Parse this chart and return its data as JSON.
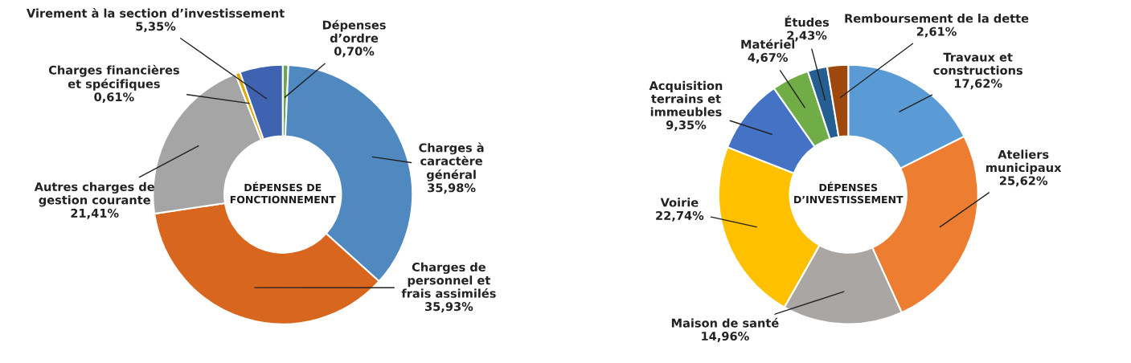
{
  "chart_data": [
    {
      "type": "donut",
      "title": "DÉPENSES DE\nFONCTIONNEMENT",
      "categories": [
        "Dépenses\nd’ordre",
        "Charges à\ncaractère\ngénéral",
        "Charges de\npersonnel et\nfrais assimilés",
        "Autres charges de\ngestion courante",
        "Charges financières\net spécifiques",
        "Virement à la section d’investissement"
      ],
      "values": [
        0.7,
        35.98,
        35.93,
        21.41,
        0.61,
        5.35
      ],
      "colors": [
        "#6aa84f",
        "#5088c0",
        "#d9661f",
        "#a5a5a5",
        "#e0a800",
        "#3f63b0"
      ],
      "value_labels": [
        "0,70%",
        "35,98%",
        "35,93%",
        "21,41%",
        "0,61%",
        "5,35%"
      ]
    },
    {
      "type": "donut",
      "title": "DÉPENSES\nD’INVESTISSEMENT",
      "categories": [
        "Travaux et\nconstructions",
        "Ateliers\nmunicipaux",
        "Maison de santé",
        "Voirie",
        "Acquisition\nterrains et\nimmeubles",
        "Matériel",
        "Études",
        "Remboursement de la dette"
      ],
      "values": [
        17.62,
        25.62,
        14.96,
        22.74,
        9.35,
        4.67,
        2.43,
        2.61
      ],
      "colors": [
        "#5b9bd5",
        "#ed7d31",
        "#a9a6a3",
        "#ffc000",
        "#4472c4",
        "#70ad47",
        "#255e91",
        "#9e480e"
      ],
      "value_labels": [
        "17,62%",
        "25,62%",
        "14,96%",
        "22,74%",
        "9,35%",
        "4,67%",
        "2,43%",
        "2,61%"
      ]
    }
  ]
}
